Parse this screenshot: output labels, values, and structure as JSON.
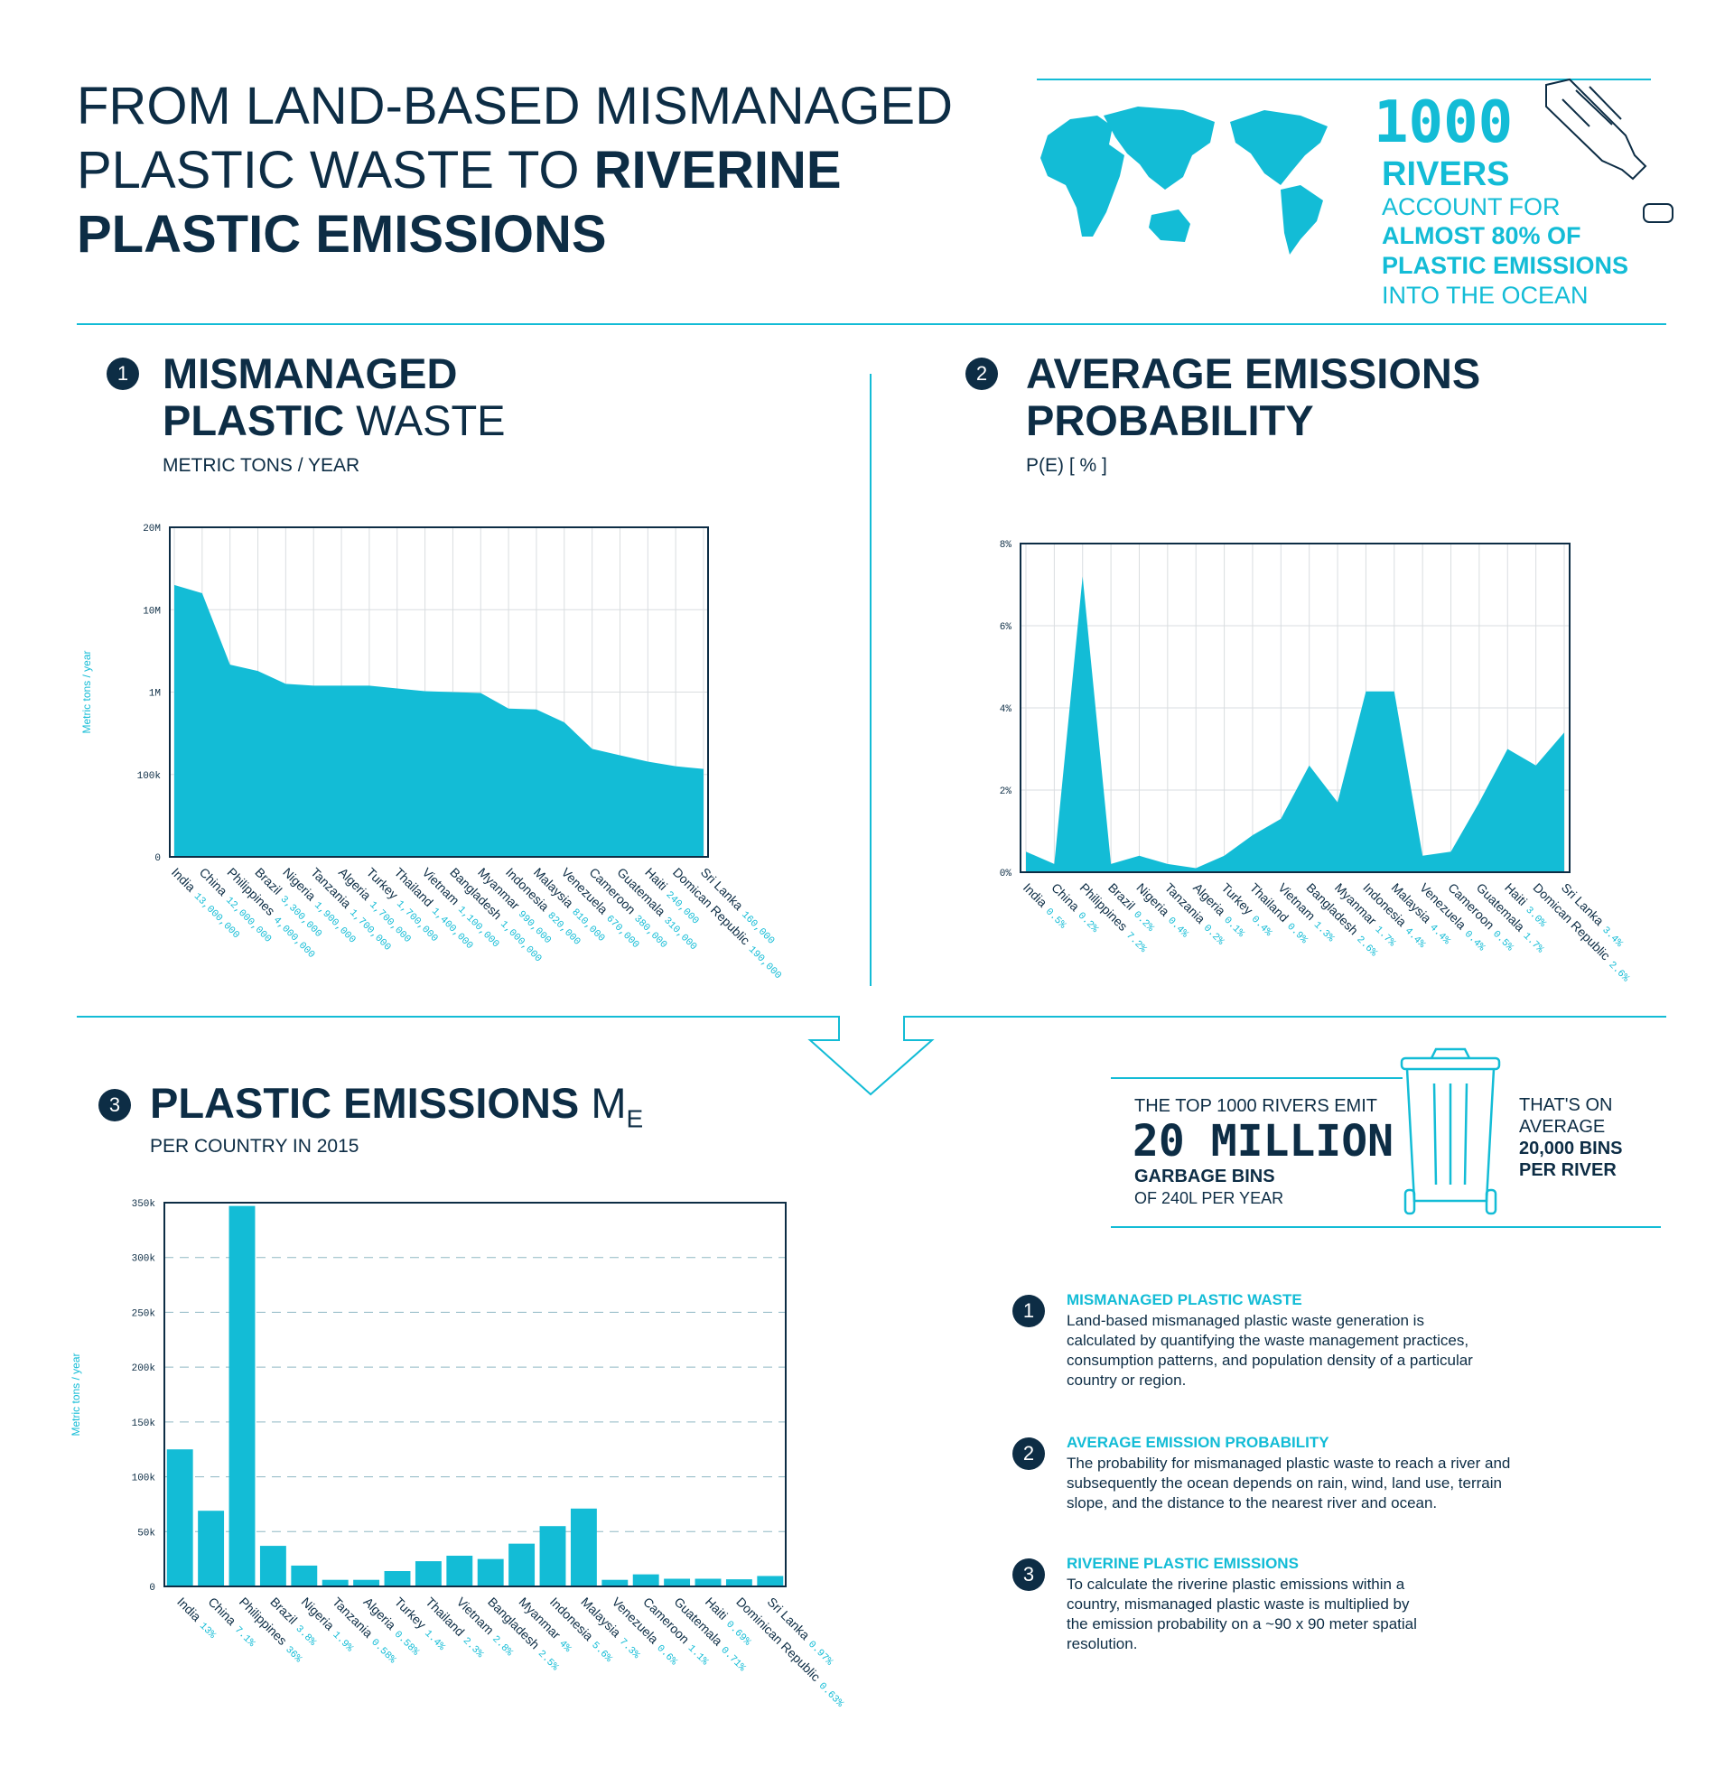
{
  "header": {
    "title": [
      "FROM LAND-BASED MISMANAGED",
      "PLASTIC WASTE TO",
      "RIVERINE",
      "PLASTIC EMISSIONS"
    ]
  },
  "callout": {
    "number": "1000",
    "unit": "RIVERS",
    "lines": [
      "ACCOUNT FOR",
      "ALMOST 80% OF",
      "PLASTIC EMISSIONS",
      "INTO THE OCEAN"
    ]
  },
  "chart_data": [
    {
      "type": "area",
      "number": "1",
      "title_bold": "MISMANAGED PLASTIC",
      "title_light": "WASTE",
      "subtitle": "METRIC TONS / YEAR",
      "ylabel": "Metric tons / year",
      "categories": [
        "India",
        "China",
        "Philippines",
        "Brazil",
        "Nigeria",
        "Tanzania",
        "Algeria",
        "Turkey",
        "Thailand",
        "Vietnam",
        "Bangladesh",
        "Myanmar",
        "Indonesia",
        "Malaysia",
        "Venezuela",
        "Cameroon",
        "Guatemala",
        "Haiti",
        "Domican Republic",
        "Sri Lanka"
      ],
      "values": [
        13000000,
        12000000,
        4000000,
        3300000,
        1900000,
        1700000,
        1700000,
        1700000,
        1400000,
        1100000,
        1000000,
        990000,
        820000,
        810000,
        670000,
        380000,
        310000,
        240000,
        190000,
        160000
      ],
      "value_labels": [
        "13,000,000",
        "12,000,000",
        "4,000,000",
        "3,300,000",
        "1,900,000",
        "1,700,000",
        "1,700,000",
        "1,700,000",
        "1,400,000",
        "1,100,000",
        "1,000,000",
        "990,000",
        "820,000",
        "810,000",
        "670,000",
        "380,000",
        "310,000",
        "240,000",
        "190,000",
        "160,000"
      ],
      "color": "#13bcd6",
      "yscale": "piecewise",
      "ylim": [
        0,
        20000000
      ],
      "yticks": [
        0,
        {
          "value": 100000,
          "label": "100k"
        },
        {
          "value": 1000000,
          "label": "1M"
        },
        {
          "value": 10000000,
          "label": "10M"
        },
        {
          "value": 20000000,
          "label": "20M"
        }
      ],
      "grid": "solid",
      "xgrid": true
    },
    {
      "type": "area",
      "number": "2",
      "title_bold": "AVERAGE EMISSIONS PROBABILITY",
      "subtitle": "P(E) [ % ]",
      "categories": [
        "India",
        "China",
        "Philippines",
        "Brazil",
        "Nigeria",
        "Tanzania",
        "Algeria",
        "Turkey",
        "Thailand",
        "Vietnam",
        "Bangladesh",
        "Myanmar",
        "Indonesia",
        "Malaysia",
        "Venezuela",
        "Cameroon",
        "Guatemala",
        "Haiti",
        "Domican Republic",
        "Sri Lanka"
      ],
      "values": [
        0.5,
        0.2,
        7.2,
        0.2,
        0.4,
        0.2,
        0.1,
        0.4,
        0.9,
        1.3,
        2.6,
        1.7,
        4.4,
        4.4,
        0.4,
        0.5,
        1.7,
        3.0,
        2.6,
        3.4
      ],
      "value_labels": [
        "0.5%",
        "0.2%",
        "7.2%",
        "0.2%",
        "0.4%",
        "0.2%",
        "0.1%",
        "0.4%",
        "0.9%",
        "1.3%",
        "2.6%",
        "1.7%",
        "4.4%",
        "4.4%",
        "0.4%",
        "0.5%",
        "1.7%",
        "3.0%",
        "2.6%",
        "3.4%"
      ],
      "color": "#13bcd6",
      "ylim": [
        0,
        8
      ],
      "yticks": [
        {
          "value": 0,
          "label": "0%"
        },
        {
          "value": 2,
          "label": "2%"
        },
        {
          "value": 4,
          "label": "4%"
        },
        {
          "value": 6,
          "label": "6%"
        },
        {
          "value": 8,
          "label": "8%"
        }
      ],
      "grid": "solid",
      "xgrid": true
    },
    {
      "type": "bar",
      "number": "3",
      "title_bold": "PLASTIC EMISSIONS",
      "title_light": "M",
      "title_subscript": "E",
      "subtitle": "PER COUNTRY IN 2015",
      "ylabel": "Metric tons / year",
      "categories": [
        "India",
        "China",
        "Philippines",
        "Brazil",
        "Nigeria",
        "Tanzania",
        "Algeria",
        "Turkey",
        "Thailand",
        "Vietnam",
        "Bangladesh",
        "Myanmar",
        "Indonesia",
        "Malaysia",
        "Venezuela",
        "Cameroon",
        "Guatemala",
        "Haiti",
        "Dominican Republic",
        "Sri Lanka"
      ],
      "values": [
        125000,
        69000,
        347000,
        37000,
        19000,
        6000,
        6000,
        14000,
        23000,
        28000,
        25000,
        39000,
        55000,
        71000,
        6000,
        11000,
        7000,
        7000,
        6500,
        9500
      ],
      "share_labels": [
        "13%",
        "7.1%",
        "36%",
        "3.8%",
        "1.9%",
        "0.58%",
        "0.58%",
        "1.4%",
        "2.3%",
        "2.8%",
        "2.5%",
        "4%",
        "5.6%",
        "7.3%",
        "0.6%",
        "1.1%",
        "0.71%",
        "0.69%",
        "0.63%",
        "0.97%"
      ],
      "color": "#13bcd6",
      "ylim": [
        0,
        350000
      ],
      "yticks": [
        0,
        {
          "value": 50000,
          "label": "50k"
        },
        {
          "value": 100000,
          "label": "100k"
        },
        {
          "value": 150000,
          "label": "150k"
        },
        {
          "value": 200000,
          "label": "200k"
        },
        {
          "value": 250000,
          "label": "250k"
        },
        {
          "value": 300000,
          "label": "300k"
        },
        {
          "value": 350000,
          "label": "350k"
        }
      ],
      "grid": "dashed",
      "xgrid": false
    }
  ],
  "bins": {
    "intro": "THE TOP 1000 RIVERS EMIT",
    "amount": "20 MILLION",
    "unit": "GARBAGE BINS",
    "detail": "OF 240L PER YEAR",
    "average": [
      "THAT'S ON",
      "AVERAGE",
      "20,000 BINS",
      "PER RIVER"
    ]
  },
  "notes": [
    {
      "number": "1",
      "heading": "MISMANAGED PLASTIC WASTE",
      "lines": [
        "Land-based mismanaged plastic waste generation is",
        "calculated by quantifying the waste management practices,",
        "consumption patterns, and population density of a particular",
        "country or region."
      ]
    },
    {
      "number": "2",
      "heading": "AVERAGE EMISSION PROBABILITY",
      "lines": [
        "The probability for mismanaged plastic waste to reach a river and",
        "subsequently the ocean depends on rain, wind, land use, terrain",
        "slope, and the distance to the nearest river and ocean."
      ]
    },
    {
      "number": "3",
      "heading": "RIVERINE PLASTIC EMISSIONS",
      "lines": [
        "To calculate the riverine plastic emissions within a",
        "country, mismanaged plastic waste is multiplied by",
        "the emission probability on a ~90 x 90 meter spatial",
        "resolution."
      ]
    }
  ]
}
